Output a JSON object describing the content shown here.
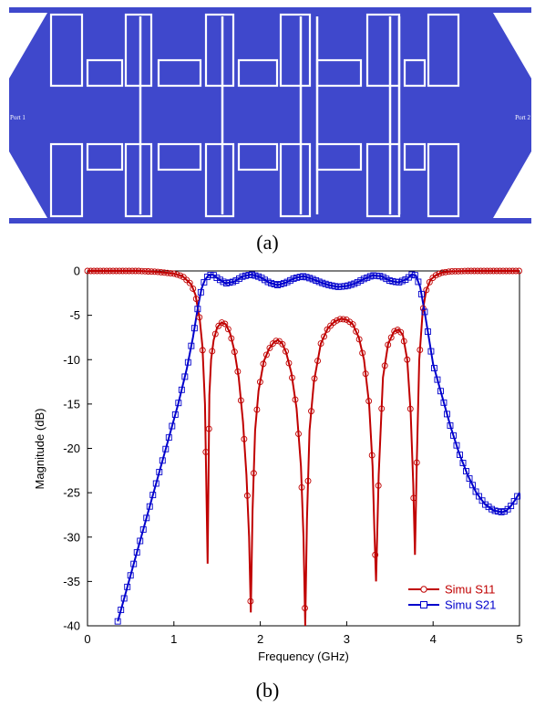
{
  "layout": {
    "caption": "(a)",
    "port_left": "Port 1",
    "port_right": "Port 2",
    "colors": {
      "metal": "#3f48cc",
      "gap": "#ffffff"
    }
  },
  "figure_b": {
    "caption": "(b)"
  },
  "chart_data": {
    "type": "line",
    "xlabel": "Frequency (GHz)",
    "ylabel": "Magnitude (dB)",
    "xlim": [
      0,
      5
    ],
    "ylim": [
      -40,
      0
    ],
    "xticks": [
      0,
      1,
      2,
      3,
      4,
      5
    ],
    "yticks": [
      0,
      -5,
      -10,
      -15,
      -20,
      -25,
      -30,
      -35,
      -40
    ],
    "grid": false,
    "legend_position": "bottom-right",
    "series": [
      {
        "name": "Simu S11",
        "color": "#c00000",
        "marker": "circle",
        "x": [
          0.0,
          0.2,
          0.4,
          0.6,
          0.8,
          1.0,
          1.1,
          1.2,
          1.25,
          1.3,
          1.33,
          1.36,
          1.39,
          1.41,
          1.43,
          1.46,
          1.5,
          1.55,
          1.6,
          1.65,
          1.7,
          1.75,
          1.8,
          1.84,
          1.87,
          1.89,
          1.91,
          1.94,
          1.98,
          2.04,
          2.1,
          2.16,
          2.2,
          2.25,
          2.3,
          2.36,
          2.42,
          2.47,
          2.5,
          2.52,
          2.54,
          2.57,
          2.62,
          2.7,
          2.78,
          2.86,
          2.93,
          3.0,
          3.07,
          3.14,
          3.2,
          3.26,
          3.3,
          3.32,
          3.34,
          3.37,
          3.42,
          3.48,
          3.55,
          3.6,
          3.65,
          3.7,
          3.74,
          3.77,
          3.79,
          3.81,
          3.84,
          3.88,
          3.92,
          3.97,
          4.03,
          4.1,
          4.2,
          4.4,
          4.6,
          4.8,
          5.0
        ],
        "y": [
          0.0,
          0.0,
          0.0,
          0.0,
          -0.1,
          -0.3,
          -0.6,
          -1.5,
          -2.7,
          -5.5,
          -8.5,
          -15.0,
          -33.0,
          -14.0,
          -10.0,
          -7.8,
          -6.4,
          -5.8,
          -6.0,
          -7.0,
          -9.0,
          -12.0,
          -17.0,
          -23.0,
          -30.0,
          -38.5,
          -27.0,
          -18.0,
          -13.5,
          -10.2,
          -8.8,
          -8.0,
          -7.8,
          -8.1,
          -9.2,
          -11.5,
          -15.5,
          -22.0,
          -30.0,
          -40.0,
          -28.0,
          -18.0,
          -12.5,
          -8.2,
          -6.5,
          -5.7,
          -5.4,
          -5.5,
          -6.0,
          -7.5,
          -10.0,
          -15.0,
          -22.0,
          -29.0,
          -35.0,
          -23.0,
          -12.0,
          -8.2,
          -6.8,
          -6.6,
          -7.2,
          -10.0,
          -16.0,
          -24.0,
          -32.0,
          -22.0,
          -10.0,
          -4.5,
          -2.2,
          -1.0,
          -0.5,
          -0.2,
          -0.05,
          0.0,
          0.0,
          0.0,
          0.0
        ]
      },
      {
        "name": "Simu S21",
        "color": "#0000cc",
        "marker": "square",
        "x": [
          0.35,
          0.45,
          0.55,
          0.65,
          0.75,
          0.85,
          0.95,
          1.05,
          1.15,
          1.22,
          1.28,
          1.32,
          1.36,
          1.4,
          1.45,
          1.5,
          1.6,
          1.7,
          1.8,
          1.9,
          2.0,
          2.1,
          2.2,
          2.3,
          2.4,
          2.5,
          2.6,
          2.7,
          2.8,
          2.9,
          3.0,
          3.1,
          3.2,
          3.3,
          3.4,
          3.5,
          3.6,
          3.7,
          3.75,
          3.8,
          3.85,
          3.9,
          3.95,
          4.0,
          4.1,
          4.2,
          4.3,
          4.4,
          4.5,
          4.6,
          4.7,
          4.8,
          4.85,
          4.9,
          4.95,
          5.0
        ],
        "y": [
          -39.5,
          -36.0,
          -32.5,
          -29.0,
          -25.5,
          -22.0,
          -18.5,
          -15.0,
          -11.0,
          -7.5,
          -4.0,
          -2.0,
          -1.0,
          -0.5,
          -0.4,
          -0.8,
          -1.4,
          -1.2,
          -0.6,
          -0.4,
          -0.7,
          -1.3,
          -1.6,
          -1.3,
          -0.8,
          -0.6,
          -0.9,
          -1.3,
          -1.6,
          -1.8,
          -1.7,
          -1.4,
          -0.9,
          -0.5,
          -0.6,
          -1.1,
          -1.3,
          -0.9,
          -0.4,
          -0.5,
          -1.8,
          -4.5,
          -7.5,
          -10.5,
          -14.0,
          -17.5,
          -20.5,
          -23.0,
          -25.0,
          -26.3,
          -27.0,
          -27.2,
          -27.0,
          -26.5,
          -25.8,
          -25.0
        ]
      }
    ]
  }
}
